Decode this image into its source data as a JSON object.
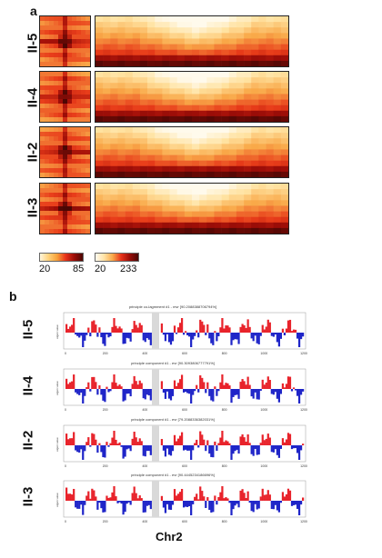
{
  "panel_a": {
    "letter": "a",
    "rows": [
      "II-5",
      "II-4",
      "II-2",
      "II-3"
    ],
    "colorbar_small": {
      "min": "20",
      "max": "85"
    },
    "colorbar_large": {
      "min": "20",
      "max": "233"
    },
    "colors": {
      "low": "#fff6dc",
      "mid": "#f7a13a",
      "high": "#e8321a",
      "max": "#4a0704"
    }
  },
  "panel_b": {
    "letter": "b",
    "rows": [
      {
        "label": "II-5",
        "title": "principle co-lagmment #1 - mvr [90.2088388706794%]"
      },
      {
        "label": "II-4",
        "title": "principle component #1 - evr [90.3093806777791%]"
      },
      {
        "label": "II-2",
        "title": "principle component #1 - evr [79.2088336382031%]"
      },
      {
        "label": "II-3",
        "title": "principle component #1 - evr [90.4445234186696%]"
      }
    ],
    "ylabel": "eigen value",
    "xlabel": "Chr2",
    "x_ticks": [
      "0",
      "200",
      "400",
      "600",
      "800",
      "1000",
      "1200"
    ],
    "colors": {
      "positive": "#e8232b",
      "negative": "#1f25c8",
      "gap": "#d9d9d9"
    }
  }
}
